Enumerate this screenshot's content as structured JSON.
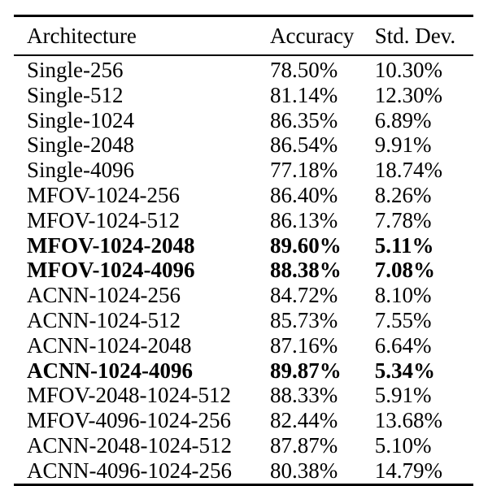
{
  "table": {
    "headers": [
      "Architecture",
      "Accuracy",
      "Std. Dev."
    ],
    "rows": [
      {
        "architecture": "Single-256",
        "accuracy": "78.50%",
        "std_dev": "10.30%",
        "bold": false
      },
      {
        "architecture": "Single-512",
        "accuracy": "81.14%",
        "std_dev": "12.30%",
        "bold": false
      },
      {
        "architecture": "Single-1024",
        "accuracy": "86.35%",
        "std_dev": "6.89%",
        "bold": false
      },
      {
        "architecture": "Single-2048",
        "accuracy": "86.54%",
        "std_dev": "9.91%",
        "bold": false
      },
      {
        "architecture": "Single-4096",
        "accuracy": "77.18%",
        "std_dev": "18.74%",
        "bold": false
      },
      {
        "architecture": "MFOV-1024-256",
        "accuracy": "86.40%",
        "std_dev": "8.26%",
        "bold": false
      },
      {
        "architecture": "MFOV-1024-512",
        "accuracy": "86.13%",
        "std_dev": "7.78%",
        "bold": false
      },
      {
        "architecture": "MFOV-1024-2048",
        "accuracy": "89.60%",
        "std_dev": "5.11%",
        "bold": true
      },
      {
        "architecture": "MFOV-1024-4096",
        "accuracy": "88.38%",
        "std_dev": "7.08%",
        "bold": true
      },
      {
        "architecture": "ACNN-1024-256",
        "accuracy": "84.72%",
        "std_dev": "8.10%",
        "bold": false
      },
      {
        "architecture": "ACNN-1024-512",
        "accuracy": "85.73%",
        "std_dev": "7.55%",
        "bold": false
      },
      {
        "architecture": "ACNN-1024-2048",
        "accuracy": "87.16%",
        "std_dev": "6.64%",
        "bold": false
      },
      {
        "architecture": "ACNN-1024-4096",
        "accuracy": "89.87%",
        "std_dev": "5.34%",
        "bold": true
      },
      {
        "architecture": "MFOV-2048-1024-512",
        "accuracy": "88.33%",
        "std_dev": "5.91%",
        "bold": false
      },
      {
        "architecture": "MFOV-4096-1024-256",
        "accuracy": "82.44%",
        "std_dev": "13.68%",
        "bold": false
      },
      {
        "architecture": "ACNN-2048-1024-512",
        "accuracy": "87.87%",
        "std_dev": "5.10%",
        "bold": false
      },
      {
        "architecture": "ACNN-4096-1024-256",
        "accuracy": "80.38%",
        "std_dev": "14.79%",
        "bold": false
      }
    ]
  },
  "chart_data": {
    "type": "table",
    "title": "",
    "columns": [
      "Architecture",
      "Accuracy",
      "Std. Dev."
    ],
    "rows": [
      [
        "Single-256",
        "78.50%",
        "10.30%"
      ],
      [
        "Single-512",
        "81.14%",
        "12.30%"
      ],
      [
        "Single-1024",
        "86.35%",
        "6.89%"
      ],
      [
        "Single-2048",
        "86.54%",
        "9.91%"
      ],
      [
        "Single-4096",
        "77.18%",
        "18.74%"
      ],
      [
        "MFOV-1024-256",
        "86.40%",
        "8.26%"
      ],
      [
        "MFOV-1024-512",
        "86.13%",
        "7.78%"
      ],
      [
        "MFOV-1024-2048",
        "89.60%",
        "5.11%"
      ],
      [
        "MFOV-1024-4096",
        "88.38%",
        "7.08%"
      ],
      [
        "ACNN-1024-256",
        "84.72%",
        "8.10%"
      ],
      [
        "ACNN-1024-512",
        "85.73%",
        "7.55%"
      ],
      [
        "ACNN-1024-2048",
        "87.16%",
        "6.64%"
      ],
      [
        "ACNN-1024-4096",
        "89.87%",
        "5.34%"
      ],
      [
        "MFOV-2048-1024-512",
        "88.33%",
        "5.91%"
      ],
      [
        "MFOV-4096-1024-256",
        "82.44%",
        "13.68%"
      ],
      [
        "ACNN-2048-1024-512",
        "87.87%",
        "5.10%"
      ],
      [
        "ACNN-4096-1024-256",
        "80.38%",
        "14.79%"
      ]
    ],
    "bold_rows": [
      7,
      8,
      12
    ]
  },
  "colors": {
    "text": "#000000",
    "background": "#ffffff",
    "rule": "#000000"
  }
}
